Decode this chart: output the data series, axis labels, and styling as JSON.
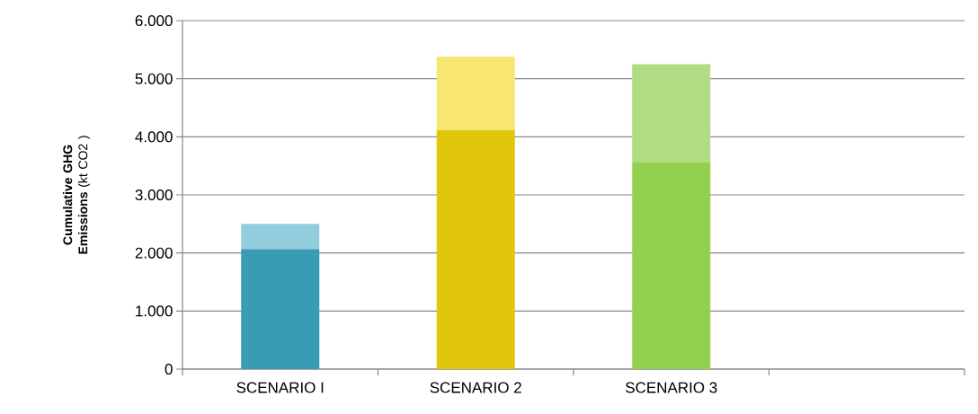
{
  "chart_data": {
    "type": "bar",
    "stacked": true,
    "ylabel": "**Cumulative GHG Emissions** (kt CO2 )",
    "categories": [
      "SCENARIO I",
      "SCENARIO 2",
      "SCENARIO 3",
      null
    ],
    "series": [
      {
        "colors": [
          "#3a9bb5",
          "#e0c70c",
          "#92d050",
          "#cccccc"
        ],
        "values": [
          2070,
          4120,
          3570,
          null
        ]
      },
      {
        "colors": [
          "#93cddd",
          "#f7e672",
          "#b0dc83",
          "#cccccc"
        ],
        "values": [
          430,
          1260,
          1680,
          null
        ]
      }
    ],
    "ylim": [
      0,
      6000
    ],
    "yticks": [
      0,
      {
        "value": 1000,
        "label": "1.000"
      },
      {
        "value": 2000,
        "label": "2.000"
      },
      {
        "value": 3000,
        "label": "3.000"
      },
      {
        "value": 4000,
        "label": "4.000"
      },
      {
        "value": 5000,
        "label": "5.000"
      },
      {
        "value": 6000,
        "label": "6.000"
      }
    ],
    "grid": "y"
  }
}
